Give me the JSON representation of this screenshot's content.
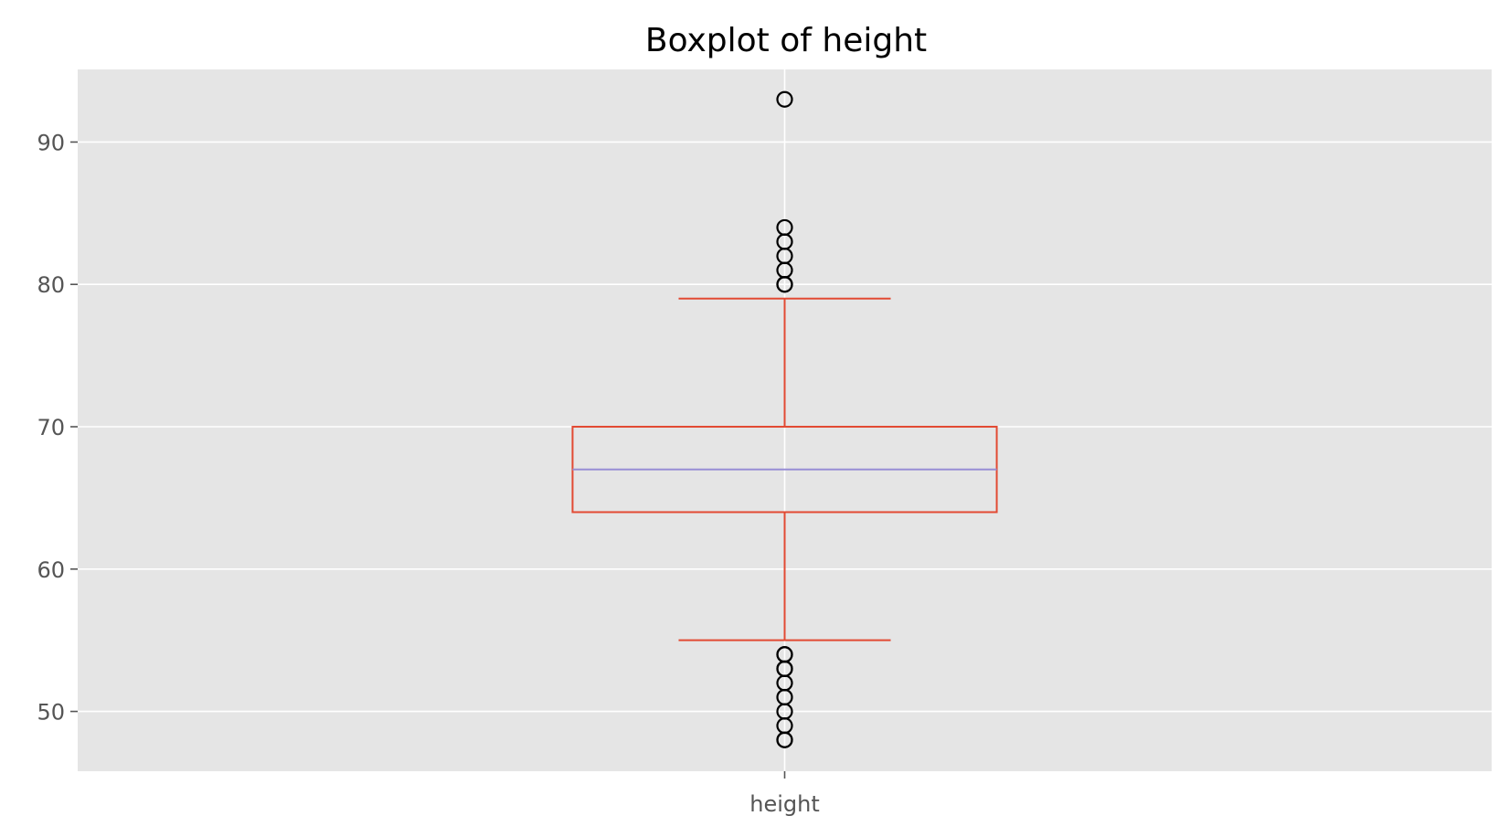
{
  "chart_data": {
    "type": "box",
    "title": "Boxplot of height",
    "xlabel": "",
    "ylabel": "",
    "categories": [
      "height"
    ],
    "ylim": [
      45.8,
      95.1
    ],
    "yticks": [
      50,
      60,
      70,
      80,
      90
    ],
    "grid": true,
    "legend": "none",
    "boxes": [
      {
        "category": "height",
        "whisker_low": 55,
        "q1": 64,
        "median": 67,
        "q3": 70,
        "whisker_high": 79,
        "outliers": [
          48,
          48,
          49,
          50,
          51,
          52,
          53,
          53,
          54,
          54,
          80,
          80,
          81,
          82,
          83,
          84,
          93
        ]
      }
    ],
    "colors": {
      "background": "#E5E5E5",
      "grid": "#FFFFFF",
      "box": "#E24A33",
      "median": "#8EBAE5",
      "median_line": "#988ED5",
      "outlier_edge": "#000000",
      "tick_text": "#555555"
    }
  }
}
